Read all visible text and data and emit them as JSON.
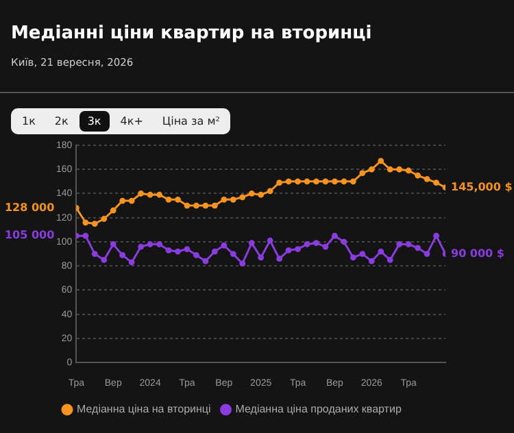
{
  "chart_data": {
    "type": "line",
    "title": "Медіанні ціни квартир на вторинці",
    "subtitle": "Київ, 21 вересня, 2026",
    "x": [
      "2023-05",
      "2023-06",
      "2023-07",
      "2023-08",
      "2023-09",
      "2023-10",
      "2023-11",
      "2023-12",
      "2024-01",
      "2024-02",
      "2024-03",
      "2024-04",
      "2024-05",
      "2024-06",
      "2024-07",
      "2024-08",
      "2024-09",
      "2024-10",
      "2024-11",
      "2024-12",
      "2025-01",
      "2025-02",
      "2025-03",
      "2025-04",
      "2025-05",
      "2025-06",
      "2025-07",
      "2025-08",
      "2025-09",
      "2025-10",
      "2025-11",
      "2025-12",
      "2026-01",
      "2026-02",
      "2026-03",
      "2026-04",
      "2026-05",
      "2026-06",
      "2026-07",
      "2026-08",
      "2026-09"
    ],
    "series": [
      {
        "name": "Медіанна ціна на вторинці",
        "color": "#f7931e",
        "values": [
          128,
          116,
          115,
          119,
          126,
          134,
          134,
          140,
          139,
          139,
          135,
          135,
          130,
          130,
          130,
          130,
          135,
          135,
          137,
          140,
          139,
          142,
          149,
          150,
          150,
          150,
          150,
          150,
          150,
          150,
          150,
          157,
          160,
          167,
          160,
          160,
          159,
          155,
          152,
          149,
          145
        ]
      },
      {
        "name": "Медіанна ціна проданих квартир",
        "color": "#8a3ce0",
        "values": [
          105,
          105,
          90,
          85,
          98,
          89,
          83,
          96,
          98,
          98,
          93,
          92,
          94,
          89,
          84,
          92,
          97,
          90,
          82,
          99,
          87,
          101,
          86,
          93,
          94,
          98,
          99,
          96,
          105,
          100,
          87,
          90,
          84,
          92,
          85,
          98,
          98,
          95,
          90,
          105,
          90
        ]
      }
    ],
    "xlim": [
      "2023-05",
      "2026-09"
    ],
    "xticks": [
      {
        "value": "2023-05",
        "label": "Тра"
      },
      {
        "value": "2023-09",
        "label": "Вер"
      },
      {
        "value": "2024-01",
        "label": "2024"
      },
      {
        "value": "2024-05",
        "label": "Тра"
      },
      {
        "value": "2024-09",
        "label": "Вер"
      },
      {
        "value": "2025-01",
        "label": "2025"
      },
      {
        "value": "2025-05",
        "label": "Тра"
      },
      {
        "value": "2025-09",
        "label": "Вер"
      },
      {
        "value": "2026-01",
        "label": "2026"
      },
      {
        "value": "2026-05",
        "label": "Тра"
      }
    ],
    "ylim": [
      0,
      180
    ],
    "yticks": [
      0,
      20,
      40,
      60,
      80,
      100,
      120,
      140,
      160,
      180
    ],
    "grid": "y",
    "legend": "bottom",
    "marker": "circle",
    "line_style": "solid",
    "annotations": [
      {
        "text": "128 000",
        "x": "2023-05",
        "y": 128
      },
      {
        "text": "105 000",
        "x": "2023-05",
        "y": 105
      },
      {
        "text": "145,000 $",
        "x": "2026-09",
        "y": 145
      },
      {
        "text": "90 000 $",
        "x": "2026-09",
        "y": 90
      },
      "1к",
      "2к",
      "3к",
      "4к+",
      "Ціна за м²"
    ]
  }
}
